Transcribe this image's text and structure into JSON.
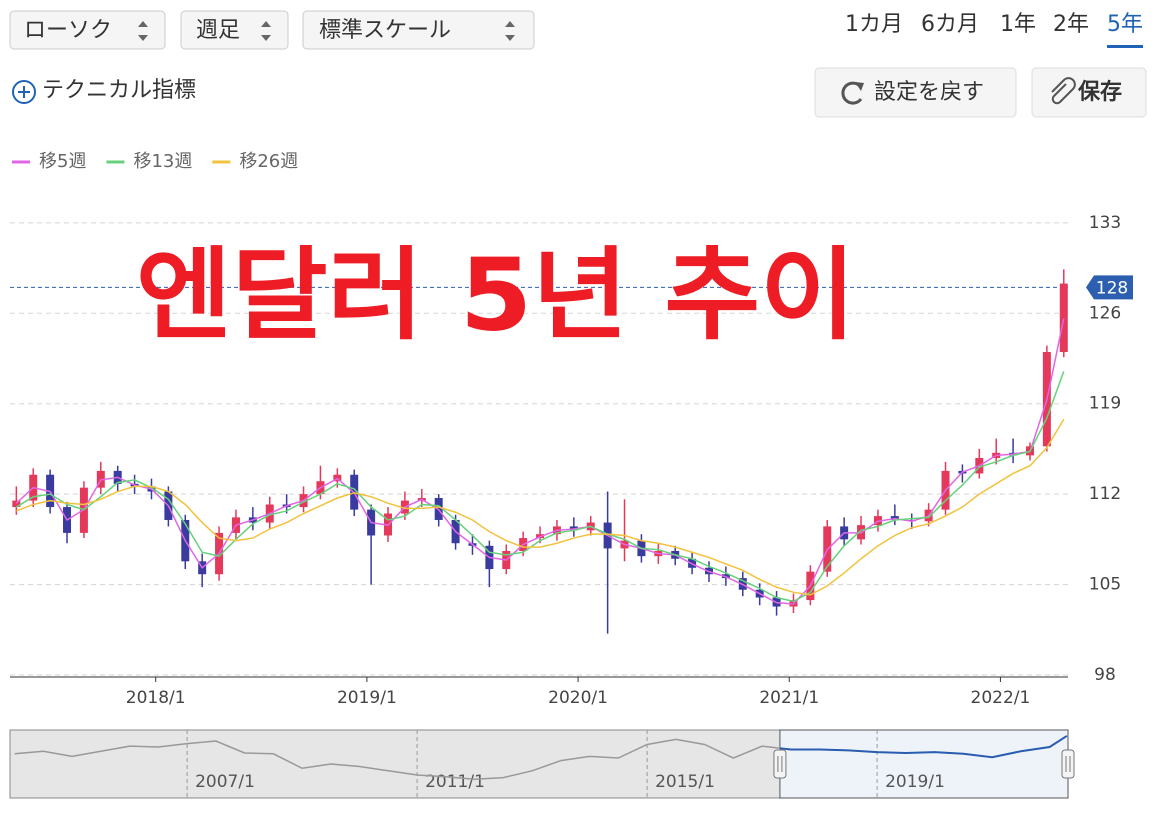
{
  "toolbar": {
    "chart_type": "ローソク",
    "interval": "週足",
    "scale": "標準スケール",
    "periods": [
      "1カ月",
      "6カ月",
      "1年",
      "2年",
      "5年"
    ],
    "active_period": "5年",
    "technical": "テクニカル指標",
    "reset": "設定を戻す",
    "save": "保存"
  },
  "overlay_title": "엔달러 5년 추이",
  "chart_data": [
    {
      "type": "candlestick",
      "up_color": "#e5395b",
      "down_color": "#3a3b9e",
      "xlim": [
        2017.31,
        2022.32
      ],
      "ylim": [
        98,
        135
      ],
      "yticks": [
        98,
        105,
        112,
        119,
        126,
        133
      ],
      "grid": true,
      "xticks": [
        {
          "value": 2018,
          "label": "2018/1"
        },
        {
          "value": 2019,
          "label": "2019/1"
        },
        {
          "value": 2020,
          "label": "2020/1"
        },
        {
          "value": 2021,
          "label": "2021/1"
        },
        {
          "value": 2022,
          "label": "2022/1"
        }
      ],
      "price_line": 128,
      "price_line_color": "#2d5fb0",
      "x": [
        2017.34,
        2017.42,
        2017.5,
        2017.58,
        2017.66,
        2017.74,
        2017.82,
        2017.9,
        2017.98,
        2018.06,
        2018.14,
        2018.22,
        2018.3,
        2018.38,
        2018.46,
        2018.54,
        2018.62,
        2018.7,
        2018.78,
        2018.86,
        2018.94,
        2019.02,
        2019.1,
        2019.18,
        2019.26,
        2019.34,
        2019.42,
        2019.5,
        2019.58,
        2019.66,
        2019.74,
        2019.82,
        2019.9,
        2019.98,
        2020.06,
        2020.14,
        2020.22,
        2020.3,
        2020.38,
        2020.46,
        2020.54,
        2020.62,
        2020.7,
        2020.78,
        2020.86,
        2020.94,
        2021.02,
        2021.1,
        2021.18,
        2021.26,
        2021.34,
        2021.42,
        2021.5,
        2021.58,
        2021.66,
        2021.74,
        2021.82,
        2021.9,
        2021.98,
        2022.06,
        2022.14,
        2022.22,
        2022.3
      ],
      "open": [
        111.0,
        111.5,
        113.5,
        111.0,
        109.0,
        112.5,
        113.8,
        112.8,
        112.6,
        112.2,
        110.0,
        106.8,
        105.8,
        109.0,
        110.2,
        109.8,
        111.2,
        111.0,
        112.0,
        113.0,
        113.5,
        110.8,
        108.8,
        110.5,
        111.5,
        111.7,
        110.0,
        108.2,
        108.0,
        106.2,
        107.6,
        108.6,
        108.9,
        109.5,
        109.2,
        109.8,
        107.8,
        108.4,
        107.2,
        107.6,
        107.0,
        106.3,
        105.8,
        105.5,
        104.6,
        104.0,
        103.3,
        103.8,
        106.0,
        109.5,
        108.5,
        109.6,
        110.3,
        110.0,
        109.9,
        110.8,
        113.8,
        113.6,
        114.8,
        115.2,
        115.0,
        115.7,
        123.0
      ],
      "high": [
        112.6,
        114.0,
        113.9,
        111.4,
        113.0,
        114.5,
        114.2,
        113.5,
        113.2,
        112.6,
        110.4,
        107.4,
        109.5,
        110.8,
        111.0,
        111.8,
        112.0,
        112.6,
        114.2,
        114.0,
        113.9,
        111.2,
        111.0,
        112.2,
        112.4,
        112.0,
        110.4,
        108.9,
        108.4,
        108.1,
        109.1,
        109.5,
        110.0,
        110.2,
        110.3,
        112.2,
        111.6,
        108.9,
        108.2,
        108.0,
        107.5,
        106.8,
        106.4,
        106.0,
        105.1,
        104.5,
        104.3,
        106.5,
        110.0,
        110.2,
        110.3,
        110.8,
        111.2,
        110.5,
        111.3,
        114.5,
        114.3,
        115.5,
        116.3,
        116.3,
        116.0,
        123.5,
        129.4
      ],
      "low": [
        110.4,
        111.0,
        110.5,
        108.2,
        108.6,
        112.0,
        112.2,
        112.0,
        111.6,
        109.5,
        106.2,
        104.8,
        105.3,
        108.5,
        109.2,
        109.3,
        110.5,
        110.6,
        111.6,
        112.5,
        110.3,
        105.0,
        108.3,
        110.0,
        111.0,
        109.5,
        107.7,
        107.3,
        104.8,
        105.8,
        107.2,
        108.2,
        108.4,
        108.7,
        108.8,
        101.2,
        106.8,
        106.7,
        106.6,
        106.5,
        105.8,
        105.2,
        104.9,
        104.1,
        103.4,
        102.6,
        102.8,
        103.4,
        105.6,
        108.0,
        108.1,
        109.1,
        109.6,
        109.3,
        109.5,
        110.4,
        112.9,
        113.2,
        114.3,
        114.4,
        114.6,
        115.3,
        122.6
      ],
      "close": [
        111.5,
        113.5,
        111.0,
        109.0,
        112.5,
        113.8,
        112.8,
        112.6,
        112.2,
        110.0,
        106.8,
        105.8,
        109.0,
        110.2,
        109.8,
        111.2,
        111.0,
        112.0,
        113.0,
        113.5,
        110.8,
        108.8,
        110.5,
        111.5,
        111.7,
        110.0,
        108.2,
        108.0,
        106.2,
        107.6,
        108.6,
        108.9,
        109.5,
        109.2,
        109.8,
        107.8,
        108.4,
        107.2,
        107.6,
        107.0,
        106.3,
        105.8,
        105.5,
        104.6,
        104.0,
        103.3,
        103.8,
        106.0,
        109.5,
        108.5,
        109.6,
        110.3,
        110.0,
        109.9,
        110.8,
        113.8,
        113.6,
        114.8,
        115.2,
        115.0,
        115.7,
        123.0,
        128.3
      ],
      "series": [
        {
          "name": "移5週",
          "color": "#e066e6",
          "values": [
            111.3,
            112.5,
            112.2,
            110.0,
            110.8,
            113.1,
            113.3,
            112.7,
            112.4,
            111.1,
            108.4,
            106.3,
            107.4,
            109.6,
            110.0,
            110.5,
            111.1,
            111.5,
            112.5,
            113.2,
            112.1,
            109.8,
            109.6,
            111.0,
            111.6,
            110.8,
            109.1,
            108.1,
            107.1,
            106.9,
            108.1,
            108.7,
            109.2,
            109.3,
            109.5,
            108.8,
            108.1,
            107.8,
            107.4,
            107.3,
            106.6,
            106.0,
            105.6,
            105.0,
            104.3,
            103.6,
            103.5,
            104.9,
            107.7,
            109.0,
            109.0,
            109.9,
            110.1,
            109.9,
            110.3,
            112.3,
            113.7,
            114.2,
            115.0,
            115.1,
            115.3,
            119.3,
            125.6
          ]
        },
        {
          "name": "移13週",
          "color": "#66d17a",
          "values": [
            111.0,
            111.8,
            112.0,
            111.2,
            110.8,
            111.8,
            112.9,
            113.1,
            112.5,
            111.6,
            109.7,
            107.5,
            107.2,
            108.5,
            109.7,
            110.4,
            110.7,
            111.4,
            112.0,
            112.8,
            112.4,
            111.0,
            110.0,
            110.3,
            111.2,
            111.1,
            110.0,
            108.8,
            107.5,
            107.3,
            107.5,
            108.4,
            109.0,
            109.2,
            109.5,
            108.9,
            108.5,
            107.8,
            107.7,
            107.3,
            107.0,
            106.4,
            105.9,
            105.3,
            104.7,
            104.0,
            103.7,
            104.4,
            106.4,
            108.0,
            109.2,
            109.5,
            110.0,
            110.1,
            110.2,
            111.5,
            112.7,
            114.1,
            114.5,
            115.0,
            115.3,
            117.9,
            121.5
          ]
        },
        {
          "name": "移26週",
          "color": "#f2c23c",
          "values": [
            110.7,
            111.2,
            111.5,
            111.3,
            111.2,
            111.6,
            112.2,
            112.6,
            112.6,
            112.2,
            111.2,
            109.8,
            108.6,
            108.4,
            108.6,
            109.3,
            109.8,
            110.5,
            111.1,
            111.7,
            112.1,
            111.8,
            111.3,
            110.9,
            110.9,
            111.0,
            110.6,
            110.0,
            109.1,
            108.4,
            107.9,
            107.9,
            108.2,
            108.6,
            108.9,
            108.9,
            108.8,
            108.4,
            108.2,
            107.9,
            107.5,
            107.1,
            106.6,
            106.1,
            105.4,
            104.8,
            104.4,
            104.2,
            104.9,
            105.9,
            107.0,
            108.0,
            108.8,
            109.4,
            109.7,
            110.3,
            111.0,
            112.0,
            112.8,
            113.6,
            114.2,
            115.6,
            117.8
          ]
        }
      ]
    },
    {
      "type": "line",
      "color": "#999999",
      "selected_color": "#2a5db0",
      "xlim": [
        2003.92,
        2022.32
      ],
      "ylim": [
        55,
        135
      ],
      "xticks": [
        {
          "value": 2007,
          "label": "2007/1"
        },
        {
          "value": 2011,
          "label": "2011/1"
        },
        {
          "value": 2015,
          "label": "2015/1"
        },
        {
          "value": 2019,
          "label": "2019/1"
        }
      ],
      "x": [
        2004.0,
        2004.5,
        2005.0,
        2005.5,
        2006.0,
        2006.5,
        2007.0,
        2007.5,
        2008.0,
        2008.5,
        2009.0,
        2009.5,
        2010.0,
        2010.5,
        2011.0,
        2011.5,
        2012.0,
        2012.5,
        2013.0,
        2013.5,
        2014.0,
        2014.5,
        2015.0,
        2015.5,
        2016.0,
        2016.5,
        2017.0,
        2017.5,
        2018.0,
        2018.5,
        2019.0,
        2019.5,
        2020.0,
        2020.5,
        2021.0,
        2021.5,
        2022.0,
        2022.3
      ],
      "values": [
        107,
        110,
        104,
        110,
        116,
        115,
        119,
        122,
        108,
        107,
        90,
        95,
        92,
        87,
        82,
        80,
        77,
        79,
        87,
        99,
        104,
        102,
        118,
        124,
        118,
        102,
        116,
        112,
        112,
        111,
        109,
        108,
        109,
        107,
        103,
        110,
        115,
        128
      ]
    }
  ]
}
